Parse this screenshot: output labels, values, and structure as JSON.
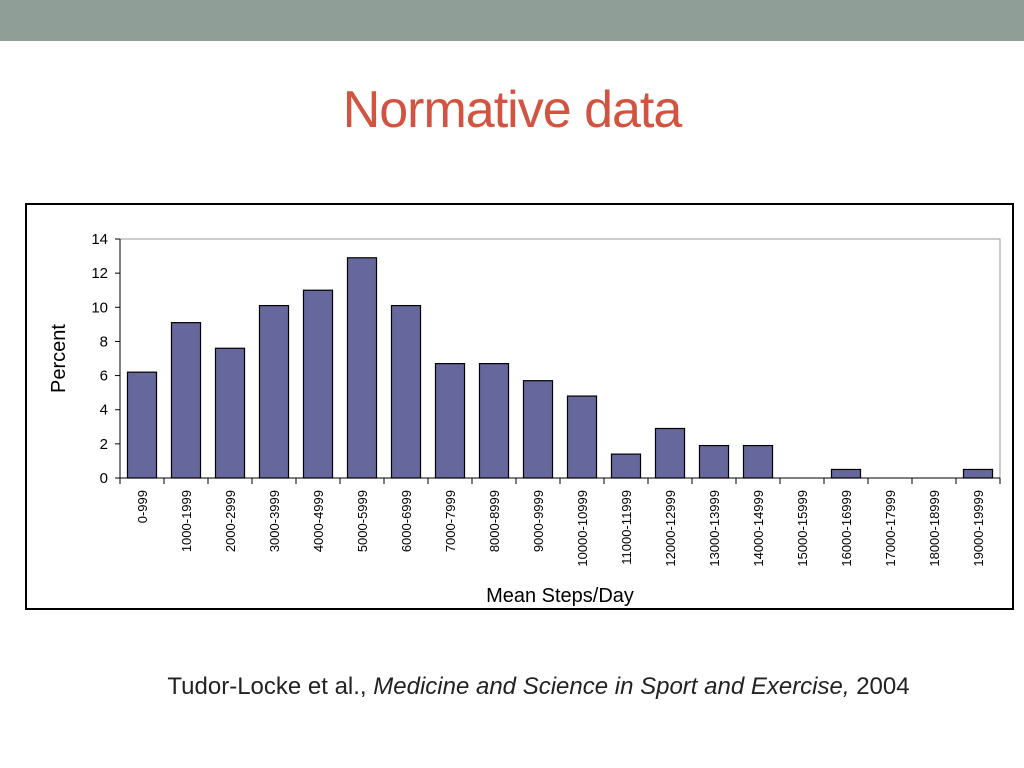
{
  "slide": {
    "title": "Normative data",
    "citation": {
      "authors": "Tudor-Locke et al., ",
      "journal": "Medicine and Science in Sport and Exercise,",
      "year": " 2004"
    }
  },
  "colors": {
    "top_band": "#8f9f98",
    "title": "#d2533f",
    "bar_fill": "#66679c",
    "bar_stroke": "#000000",
    "plot_border": "#999999"
  },
  "chart_data": {
    "type": "bar",
    "categories": [
      "0-999",
      "1000-1999",
      "2000-2999",
      "3000-3999",
      "4000-4999",
      "5000-5999",
      "6000-6999",
      "7000-7999",
      "8000-8999",
      "9000-9999",
      "10000-10999",
      "11000-11999",
      "12000-12999",
      "13000-13999",
      "14000-14999",
      "15000-15999",
      "16000-16999",
      "17000-17999",
      "18000-18999",
      "19000-19999"
    ],
    "values": [
      6.2,
      9.1,
      7.6,
      10.1,
      11.0,
      12.9,
      10.1,
      6.7,
      6.7,
      5.7,
      4.8,
      1.4,
      2.9,
      1.9,
      1.9,
      0,
      0.5,
      0,
      0,
      0.5
    ],
    "title": "",
    "xlabel": "Mean Steps/Day",
    "ylabel": "Percent",
    "ylim": [
      0,
      14
    ],
    "yticks": [
      0,
      2,
      4,
      6,
      8,
      10,
      12,
      14
    ],
    "grid": false,
    "legend": "none"
  }
}
